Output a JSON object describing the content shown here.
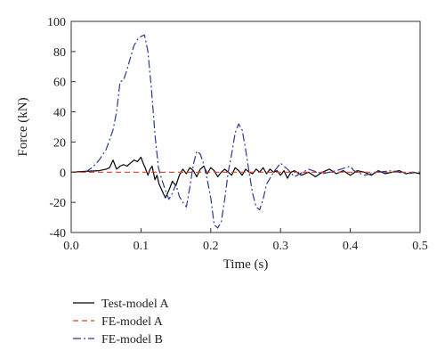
{
  "chart_data": {
    "type": "line",
    "xlabel": "Time (s)",
    "ylabel": "Force (kN)",
    "xlim": [
      0.0,
      0.5
    ],
    "ylim": [
      -40,
      100
    ],
    "xticks": [
      "0.0",
      "0.1",
      "0.2",
      "0.3",
      "0.4",
      "0.5"
    ],
    "yticks": [
      "-40",
      "-20",
      "0",
      "20",
      "40",
      "60",
      "80",
      "100"
    ],
    "grid": false,
    "legend_position": "bottom-left, below plot",
    "series": [
      {
        "name": "Test-model A",
        "color": "#000000",
        "dash": "solid",
        "x": [
          0.0,
          0.02,
          0.04,
          0.05,
          0.055,
          0.06,
          0.065,
          0.07,
          0.075,
          0.08,
          0.085,
          0.09,
          0.095,
          0.1,
          0.103,
          0.106,
          0.11,
          0.113,
          0.116,
          0.12,
          0.123,
          0.126,
          0.13,
          0.135,
          0.14,
          0.145,
          0.15,
          0.155,
          0.16,
          0.165,
          0.17,
          0.175,
          0.18,
          0.185,
          0.19,
          0.195,
          0.2,
          0.205,
          0.21,
          0.215,
          0.22,
          0.225,
          0.23,
          0.235,
          0.24,
          0.245,
          0.25,
          0.255,
          0.26,
          0.265,
          0.27,
          0.275,
          0.28,
          0.285,
          0.29,
          0.295,
          0.3,
          0.305,
          0.31,
          0.315,
          0.32,
          0.33,
          0.34,
          0.35,
          0.36,
          0.37,
          0.38,
          0.39,
          0.4,
          0.41,
          0.42,
          0.43,
          0.44,
          0.45,
          0.46,
          0.47,
          0.48,
          0.49,
          0.5
        ],
        "y": [
          0,
          0.5,
          1,
          2,
          3,
          8,
          2,
          4,
          5,
          4,
          6,
          8,
          7,
          10,
          6,
          3,
          -2,
          2,
          4,
          -5,
          -2,
          -8,
          -12,
          -17,
          -12,
          -6,
          -9,
          -2,
          2,
          -1,
          3,
          1,
          -3,
          2,
          4,
          -1,
          3,
          1,
          -3,
          0,
          2,
          0,
          -2,
          3,
          1,
          -2,
          2,
          0,
          -1,
          2,
          0,
          3,
          -1,
          2,
          0,
          1,
          -2,
          1,
          -4,
          0,
          1,
          -2,
          0,
          -3,
          0,
          2,
          -1,
          1,
          -2,
          1,
          0,
          -2,
          1,
          -1,
          0,
          1,
          -1,
          0,
          -1
        ]
      },
      {
        "name": "FE-model A",
        "color": "#d9412b",
        "dash": "dashed",
        "x": [
          0.0,
          0.1,
          0.2,
          0.3,
          0.4,
          0.5
        ],
        "y": [
          0,
          0,
          0,
          0,
          0,
          0
        ]
      },
      {
        "name": "FE-model B",
        "color": "#2a3a8f",
        "dash": "dash-dot",
        "x": [
          0.02,
          0.03,
          0.04,
          0.05,
          0.06,
          0.065,
          0.07,
          0.075,
          0.08,
          0.085,
          0.09,
          0.095,
          0.1,
          0.105,
          0.11,
          0.115,
          0.12,
          0.125,
          0.13,
          0.135,
          0.14,
          0.145,
          0.15,
          0.155,
          0.16,
          0.165,
          0.17,
          0.175,
          0.18,
          0.185,
          0.19,
          0.195,
          0.2,
          0.205,
          0.21,
          0.215,
          0.22,
          0.225,
          0.23,
          0.235,
          0.24,
          0.245,
          0.25,
          0.255,
          0.26,
          0.265,
          0.27,
          0.275,
          0.28,
          0.29,
          0.3,
          0.31,
          0.32,
          0.34,
          0.36,
          0.38,
          0.4,
          0.405,
          0.42,
          0.44,
          0.46,
          0.48,
          0.5
        ],
        "y": [
          0,
          3,
          8,
          15,
          28,
          40,
          60,
          61,
          68,
          76,
          84,
          88,
          90,
          91,
          80,
          55,
          25,
          3,
          -5,
          -12,
          -18,
          -14,
          -8,
          -16,
          -20,
          -23,
          -10,
          5,
          14,
          12,
          5,
          -5,
          -17,
          -35,
          -37,
          -33,
          -18,
          0,
          12,
          26,
          32,
          28,
          15,
          0,
          -14,
          -23,
          -25,
          -18,
          -8,
          0,
          6,
          2,
          -3,
          2,
          -1,
          1,
          4,
          1,
          -2,
          0,
          1,
          -1,
          0
        ]
      }
    ]
  }
}
